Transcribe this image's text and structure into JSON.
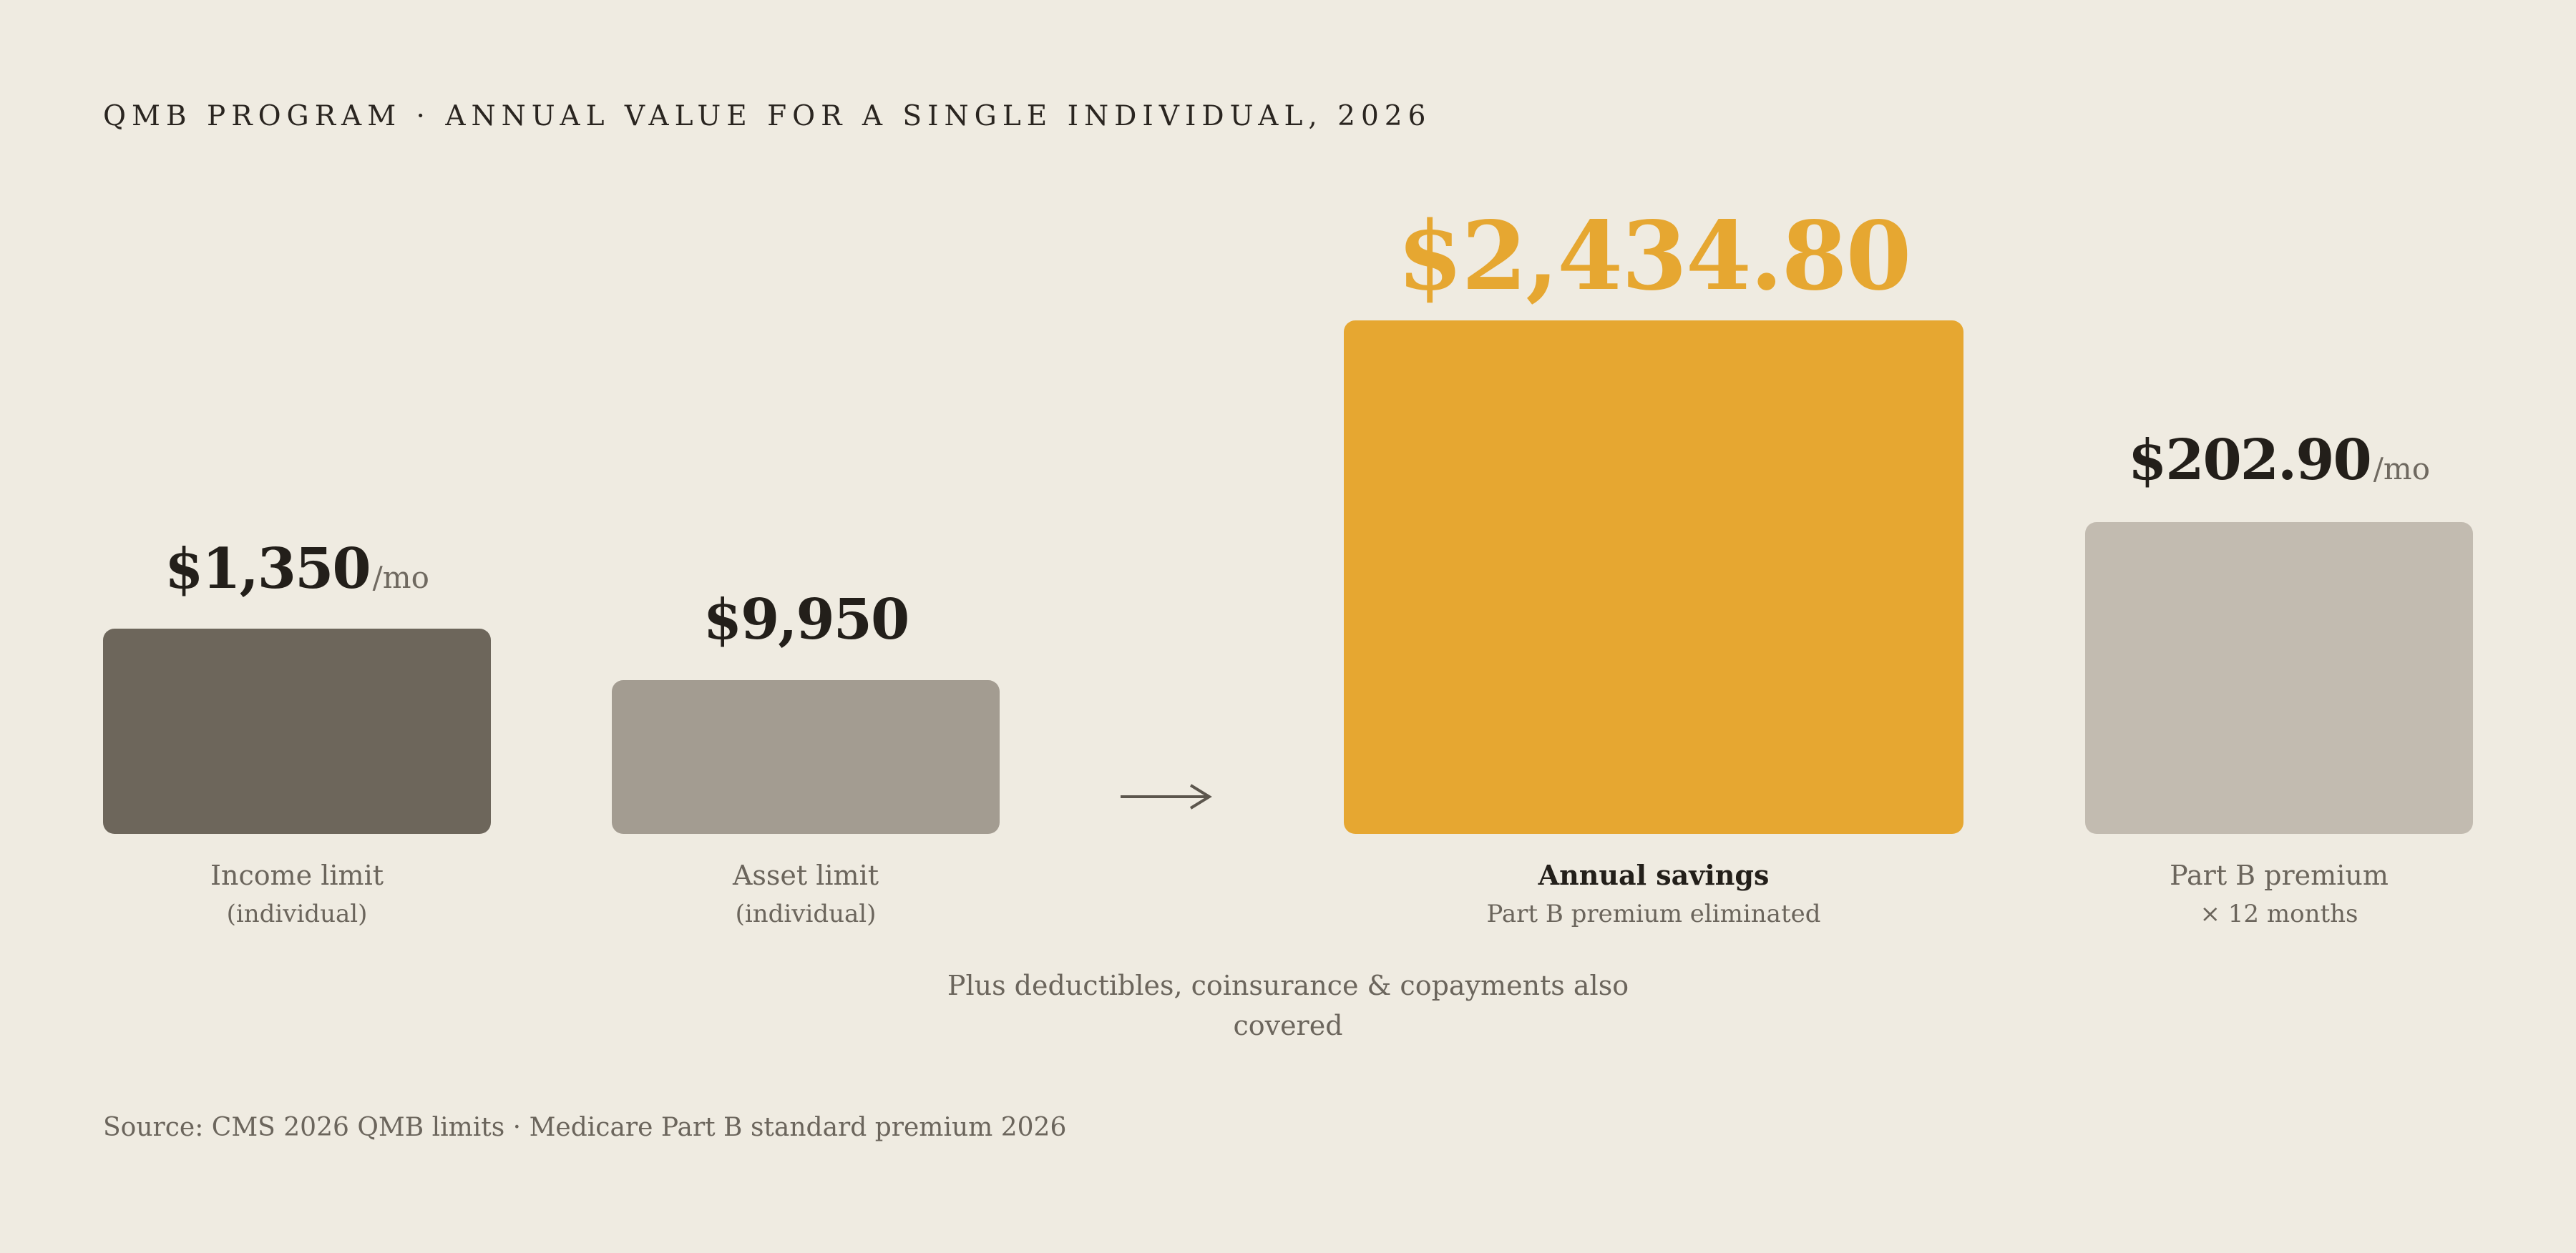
{
  "header": {
    "title": "QMB PROGRAM · ANNUAL VALUE FOR A SINGLE INDIVIDUAL, 2026"
  },
  "footer": {
    "source": "Source: CMS 2026 QMB limits · Medicare Part B standard premium 2026"
  },
  "note": "Plus deductibles, coinsurance & copayments also covered",
  "colors": {
    "background": "#efebe1",
    "income_bar": "#6d665b",
    "asset_bar": "#a39c91",
    "savings_bar": "#e6a731",
    "premium_bar": "#c2bbb0",
    "savings_text": "#e6a731"
  },
  "icons": {
    "flow": "arrow-right-icon"
  },
  "chart_data": {
    "type": "bar",
    "title": "QMB PROGRAM · ANNUAL VALUE FOR A SINGLE INDIVIDUAL, 2026",
    "legend": "none",
    "grid": false,
    "categories": [
      "Income limit (individual)",
      "Asset limit (individual)",
      "Annual savings",
      "Part B premium"
    ],
    "bars": [
      {
        "id": "income",
        "label": "Income limit",
        "sublabel": "(individual)",
        "value": 1350,
        "value_text": "$1,350",
        "unit": "/mo"
      },
      {
        "id": "asset",
        "label": "Asset limit",
        "sublabel": "(individual)",
        "value": 9950,
        "value_text": "$9,950",
        "unit": ""
      },
      {
        "id": "savings",
        "label": "Annual savings",
        "sublabel": "Part B premium eliminated",
        "value": 2434.8,
        "value_text": "$2,434.80",
        "unit": ""
      },
      {
        "id": "premium",
        "label": "Part B premium",
        "sublabel": "× 12 months",
        "value": 202.9,
        "value_text": "$202.90",
        "unit": "/mo"
      }
    ]
  }
}
